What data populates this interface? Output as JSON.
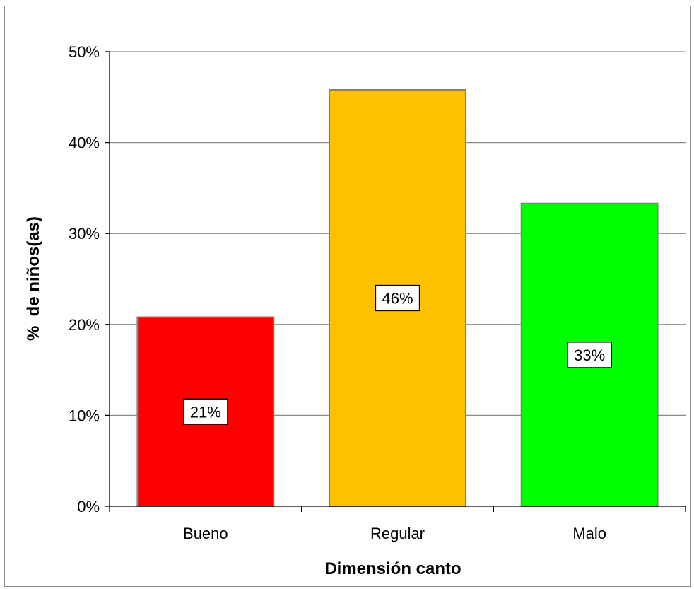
{
  "chart_data": {
    "type": "bar",
    "categories": [
      "Bueno",
      "Regular",
      "Malo"
    ],
    "values": [
      0.208,
      0.458,
      0.333
    ],
    "data_labels": [
      "21%",
      "46%",
      "33%"
    ],
    "bar_colors": [
      "#ff0000",
      "#ffc000",
      "#00ff00"
    ],
    "xlabel": "Dimensión canto",
    "ylabel": "%  de niños(as)",
    "ylim": [
      0,
      0.5
    ],
    "yticks": [
      0,
      0.1,
      0.2,
      0.3,
      0.4,
      0.5
    ],
    "ytick_labels": [
      "0%",
      "10%",
      "20%",
      "30%",
      "40%",
      "50%"
    ],
    "grid": true,
    "legend": "none"
  }
}
